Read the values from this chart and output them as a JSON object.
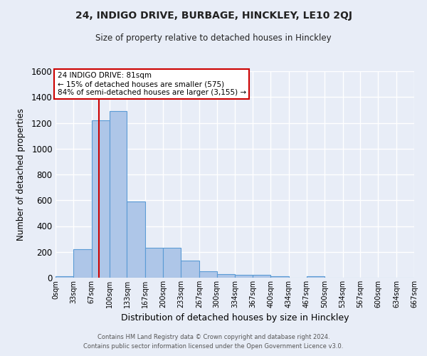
{
  "title1": "24, INDIGO DRIVE, BURBAGE, HINCKLEY, LE10 2QJ",
  "title2": "Size of property relative to detached houses in Hinckley",
  "xlabel": "Distribution of detached houses by size in Hinckley",
  "ylabel": "Number of detached properties",
  "footer1": "Contains HM Land Registry data © Crown copyright and database right 2024.",
  "footer2": "Contains public sector information licensed under the Open Government Licence v3.0.",
  "annotation_title": "24 INDIGO DRIVE: 81sqm",
  "annotation_line1": "← 15% of detached houses are smaller (575)",
  "annotation_line2": "84% of semi-detached houses are larger (3,155) →",
  "property_size": 81,
  "bin_edges": [
    0,
    33,
    67,
    100,
    133,
    167,
    200,
    233,
    267,
    300,
    334,
    367,
    400,
    434,
    467,
    500,
    534,
    567,
    600,
    634,
    667
  ],
  "bar_heights": [
    10,
    220,
    1220,
    1290,
    590,
    230,
    230,
    135,
    48,
    30,
    22,
    22,
    10,
    0,
    10,
    0,
    0,
    0,
    0,
    0
  ],
  "bar_color": "#aec6e8",
  "bar_edge_color": "#5b9bd5",
  "red_line_x": 81,
  "ylim": [
    0,
    1600
  ],
  "yticks": [
    0,
    200,
    400,
    600,
    800,
    1000,
    1200,
    1400,
    1600
  ],
  "background_color": "#e8edf7",
  "plot_bg_color": "#e8edf7",
  "grid_color": "#ffffff",
  "annotation_box_color": "#ffffff",
  "annotation_box_edge": "#cc0000",
  "red_line_color": "#cc0000",
  "xlim": [
    0,
    667
  ]
}
